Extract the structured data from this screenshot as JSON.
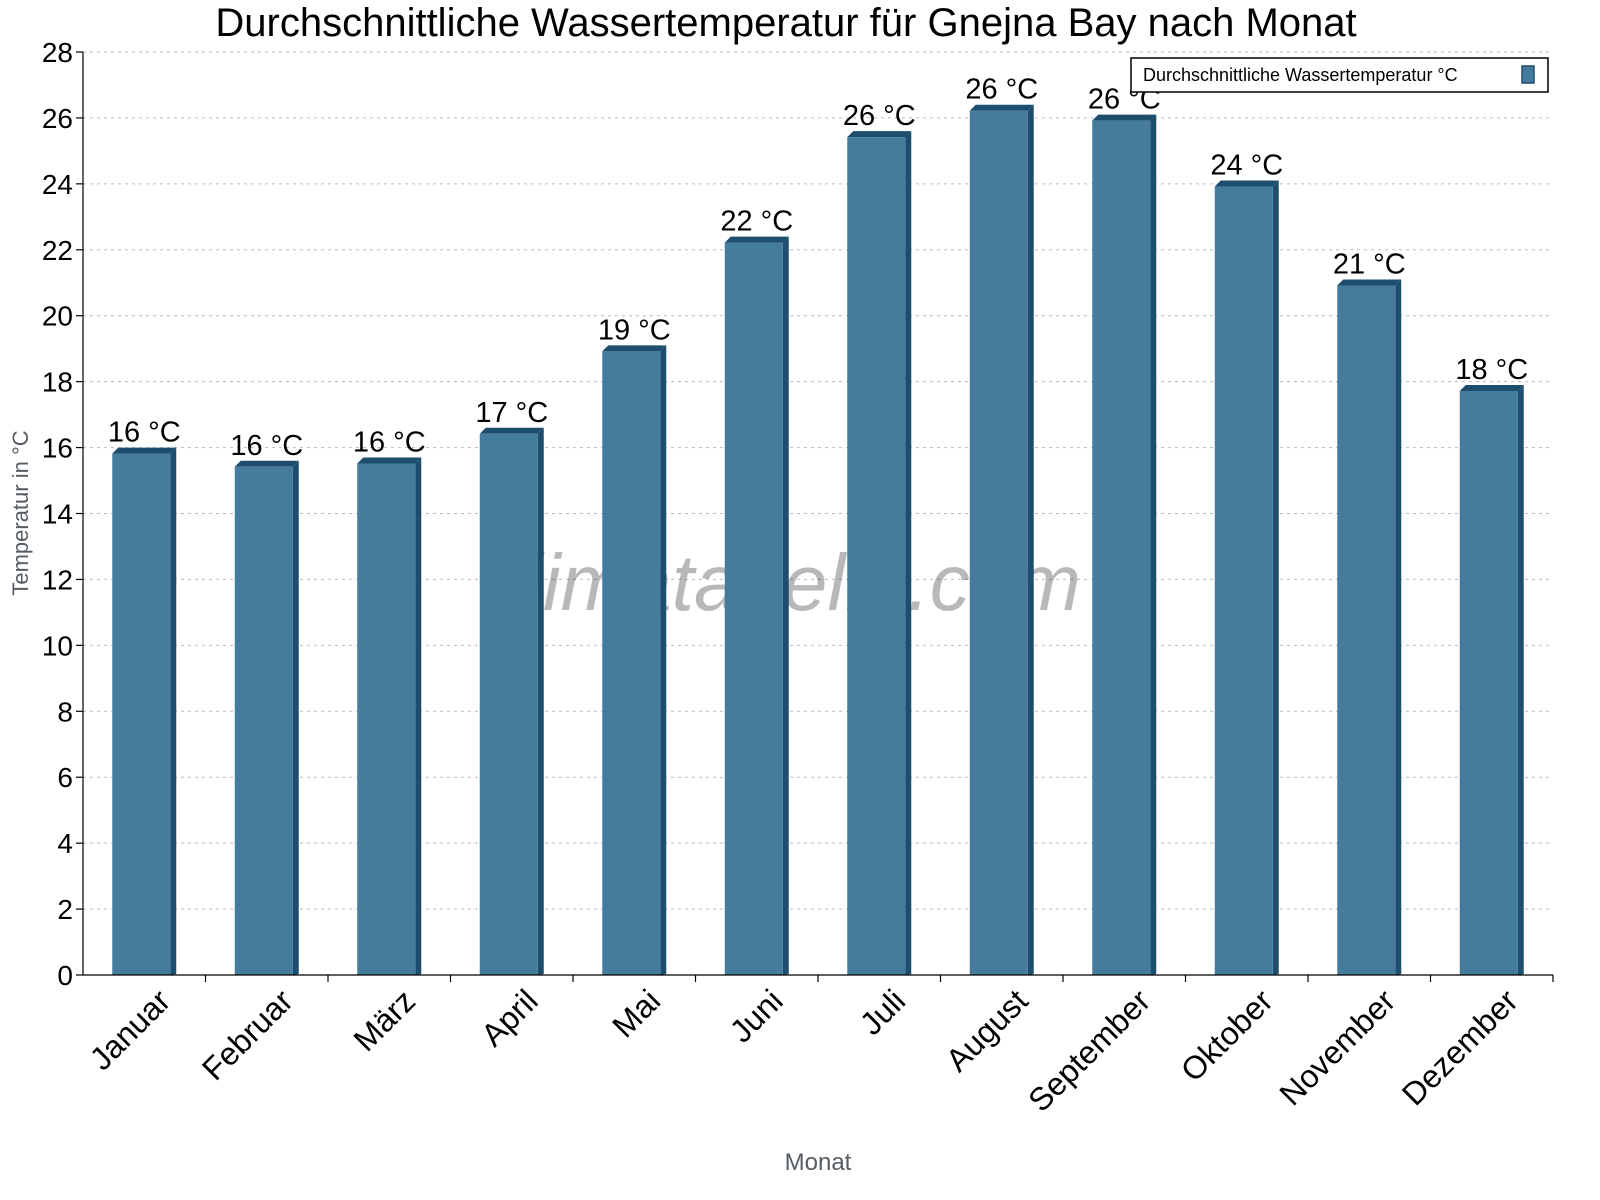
{
  "chart_data": {
    "type": "bar",
    "title": "Durchschnittliche Wassertemperatur für Gnejna Bay nach Monat",
    "xlabel": "Monat",
    "ylabel": "Temperatur in °C",
    "ylim": [
      0,
      28
    ],
    "yticks": [
      0,
      2,
      4,
      6,
      8,
      10,
      12,
      14,
      16,
      18,
      20,
      22,
      24,
      26,
      28
    ],
    "grid": true,
    "legend_position": "top-right",
    "categories": [
      "Januar",
      "Februar",
      "März",
      "April",
      "Mai",
      "Juni",
      "Juli",
      "August",
      "September",
      "Oktober",
      "November",
      "Dezember"
    ],
    "series": [
      {
        "name": "Durchschnittliche Wassertemperatur °C",
        "color": "#457b9d",
        "side_color": "#1d4e6e",
        "values": [
          16.0,
          15.6,
          15.7,
          16.6,
          19.1,
          22.4,
          25.6,
          26.4,
          26.1,
          24.1,
          21.1,
          17.9
        ],
        "data_labels": [
          "16 °C",
          "16 °C",
          "16 °C",
          "17 °C",
          "19 °C",
          "22 °C",
          "26 °C",
          "26 °C",
          "26 °C",
          "24 °C",
          "21 °C",
          "18 °C"
        ]
      }
    ],
    "watermark": "klimatabelle.com"
  }
}
